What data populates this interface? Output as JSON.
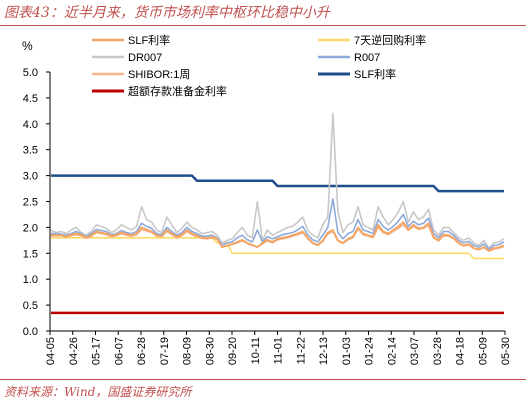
{
  "title": "图表43：近半月来，货币市场利率中枢环比稳中小升",
  "source": "资料来源：Wind，国盛证券研究所",
  "chart_data": {
    "type": "line",
    "ylabel": "%",
    "ylim": [
      0,
      5
    ],
    "yticks": [
      "0.0",
      "0.5",
      "1.0",
      "1.5",
      "2.0",
      "2.5",
      "3.0",
      "3.5",
      "4.0",
      "4.5",
      "5.0"
    ],
    "x_ticks": [
      "04-05",
      "04-26",
      "05-17",
      "06-07",
      "06-28",
      "07-19",
      "08-09",
      "08-30",
      "09-20",
      "10-11",
      "11-01",
      "11-22",
      "12-13",
      "01-03",
      "01-24",
      "02-14",
      "03-07",
      "03-28",
      "04-18",
      "05-09",
      "05-30"
    ],
    "legend_placement": "top",
    "series": [
      {
        "name": "SLF利率",
        "color": "#f4a460",
        "values": [
          1.85,
          1.85,
          1.85,
          1.82,
          1.86,
          1.88,
          1.86,
          1.8,
          1.85,
          1.92,
          1.9,
          1.88,
          1.84,
          1.86,
          1.9,
          1.87,
          1.85,
          1.88,
          2.0,
          1.96,
          1.92,
          1.85,
          1.83,
          1.95,
          1.88,
          1.82,
          1.86,
          1.95,
          1.88,
          1.84,
          1.8,
          1.79,
          1.82,
          1.78,
          1.62,
          1.65,
          1.68,
          1.72,
          1.76,
          1.7,
          1.66,
          1.62,
          1.7,
          1.76,
          1.72,
          1.78,
          1.8,
          1.82,
          1.85,
          1.88,
          1.92,
          1.8,
          1.7,
          1.66,
          1.75,
          1.9,
          1.95,
          1.75,
          1.7,
          1.78,
          1.82,
          2.0,
          1.88,
          1.85,
          1.82,
          2.05,
          1.92,
          1.88,
          1.95,
          2.02,
          2.1,
          1.96,
          2.05,
          1.98,
          2.0,
          2.08,
          1.82,
          1.75,
          1.86,
          1.85,
          1.8,
          1.7,
          1.65,
          1.68,
          1.6,
          1.58,
          1.62,
          1.55,
          1.6,
          1.62,
          1.65
        ]
      },
      {
        "name": "7天逆回购利率",
        "color": "#ffd966",
        "values": [
          1.8,
          1.8,
          1.8,
          1.8,
          1.8,
          1.8,
          1.8,
          1.8,
          1.8,
          1.8,
          1.8,
          1.8,
          1.8,
          1.8,
          1.8,
          1.8,
          1.8,
          1.8,
          1.8,
          1.8,
          1.8,
          1.8,
          1.8,
          1.8,
          1.8,
          1.8,
          1.8,
          1.8,
          1.8,
          1.8,
          1.8,
          1.8,
          1.8,
          1.7,
          1.7,
          1.7,
          1.5,
          1.5,
          1.5,
          1.5,
          1.5,
          1.5,
          1.5,
          1.5,
          1.5,
          1.5,
          1.5,
          1.5,
          1.5,
          1.5,
          1.5,
          1.5,
          1.5,
          1.5,
          1.5,
          1.5,
          1.5,
          1.5,
          1.5,
          1.5,
          1.5,
          1.5,
          1.5,
          1.5,
          1.5,
          1.5,
          1.5,
          1.5,
          1.5,
          1.5,
          1.5,
          1.5,
          1.5,
          1.5,
          1.5,
          1.5,
          1.5,
          1.5,
          1.5,
          1.5,
          1.5,
          1.5,
          1.5,
          1.5,
          1.4,
          1.4,
          1.4,
          1.4,
          1.4,
          1.4,
          1.4
        ]
      },
      {
        "name": "DR007",
        "color": "#c8c8c8",
        "values": [
          1.95,
          1.9,
          1.92,
          1.88,
          1.95,
          2.0,
          1.9,
          1.85,
          1.92,
          2.05,
          2.02,
          1.98,
          1.9,
          1.95,
          2.05,
          2.0,
          1.95,
          2.02,
          2.4,
          2.15,
          2.1,
          1.95,
          1.9,
          2.2,
          2.05,
          1.9,
          1.98,
          2.1,
          2.0,
          1.95,
          1.88,
          1.9,
          1.92,
          1.85,
          1.7,
          1.75,
          1.78,
          1.9,
          2.0,
          1.85,
          1.8,
          2.5,
          1.75,
          1.95,
          1.85,
          1.9,
          1.95,
          2.0,
          2.02,
          2.1,
          2.2,
          1.95,
          1.85,
          1.8,
          2.05,
          2.2,
          4.2,
          2.3,
          1.9,
          2.05,
          2.1,
          2.4,
          2.05,
          2.0,
          1.95,
          2.4,
          2.2,
          2.05,
          2.15,
          2.3,
          2.5,
          2.1,
          2.3,
          2.15,
          2.2,
          2.35,
          1.95,
          1.85,
          2.0,
          2.0,
          1.9,
          1.8,
          1.75,
          1.8,
          1.7,
          1.65,
          1.75,
          1.6,
          1.7,
          1.72,
          1.78
        ]
      },
      {
        "name": "R007",
        "color": "#8eaadb",
        "values": [
          1.88,
          1.88,
          1.87,
          1.85,
          1.88,
          1.92,
          1.88,
          1.82,
          1.88,
          1.96,
          1.94,
          1.92,
          1.86,
          1.88,
          1.94,
          1.9,
          1.88,
          1.92,
          2.08,
          2.02,
          1.98,
          1.88,
          1.86,
          2.0,
          1.92,
          1.85,
          1.9,
          2.0,
          1.92,
          1.88,
          1.83,
          1.83,
          1.85,
          1.8,
          1.66,
          1.7,
          1.72,
          1.8,
          1.85,
          1.76,
          1.72,
          1.95,
          1.72,
          1.82,
          1.78,
          1.82,
          1.86,
          1.88,
          1.9,
          1.95,
          2.02,
          1.86,
          1.76,
          1.72,
          1.85,
          2.0,
          2.55,
          1.9,
          1.78,
          1.88,
          1.92,
          2.15,
          1.95,
          1.92,
          1.88,
          2.15,
          2.02,
          1.95,
          2.02,
          2.12,
          2.25,
          2.02,
          2.12,
          2.05,
          2.08,
          2.18,
          1.88,
          1.8,
          1.92,
          1.92,
          1.85,
          1.75,
          1.7,
          1.73,
          1.65,
          1.62,
          1.68,
          1.58,
          1.65,
          1.67,
          1.72
        ]
      },
      {
        "name": "SHIBOR:1周",
        "color": "#f6b389",
        "values": [
          1.83,
          1.84,
          1.84,
          1.81,
          1.84,
          1.86,
          1.84,
          1.79,
          1.83,
          1.9,
          1.88,
          1.86,
          1.82,
          1.84,
          1.88,
          1.85,
          1.83,
          1.86,
          1.96,
          1.93,
          1.9,
          1.83,
          1.82,
          1.92,
          1.86,
          1.8,
          1.84,
          1.92,
          1.86,
          1.82,
          1.79,
          1.78,
          1.8,
          1.77,
          1.62,
          1.64,
          1.67,
          1.7,
          1.74,
          1.69,
          1.65,
          1.62,
          1.68,
          1.74,
          1.7,
          1.76,
          1.78,
          1.8,
          1.83,
          1.86,
          1.9,
          1.78,
          1.69,
          1.65,
          1.73,
          1.87,
          1.92,
          1.74,
          1.69,
          1.76,
          1.8,
          1.97,
          1.86,
          1.83,
          1.8,
          2.0,
          1.9,
          1.86,
          1.92,
          1.98,
          2.05,
          1.94,
          2.02,
          1.96,
          1.98,
          2.04,
          1.8,
          1.74,
          1.84,
          1.83,
          1.78,
          1.69,
          1.64,
          1.66,
          1.59,
          1.57,
          1.61,
          1.54,
          1.58,
          1.6,
          1.63
        ]
      },
      {
        "name": "SLF利率",
        "color": "#1f4e8c",
        "values": [
          3.0,
          3.0,
          3.0,
          3.0,
          3.0,
          3.0,
          3.0,
          3.0,
          3.0,
          3.0,
          3.0,
          3.0,
          3.0,
          3.0,
          3.0,
          3.0,
          3.0,
          3.0,
          3.0,
          3.0,
          3.0,
          3.0,
          3.0,
          3.0,
          3.0,
          3.0,
          3.0,
          3.0,
          3.0,
          2.9,
          2.9,
          2.9,
          2.9,
          2.9,
          2.9,
          2.9,
          2.9,
          2.9,
          2.9,
          2.9,
          2.9,
          2.9,
          2.9,
          2.9,
          2.9,
          2.8,
          2.8,
          2.8,
          2.8,
          2.8,
          2.8,
          2.8,
          2.8,
          2.8,
          2.8,
          2.8,
          2.8,
          2.8,
          2.8,
          2.8,
          2.8,
          2.8,
          2.8,
          2.8,
          2.8,
          2.8,
          2.8,
          2.8,
          2.8,
          2.8,
          2.8,
          2.8,
          2.8,
          2.8,
          2.8,
          2.8,
          2.8,
          2.7,
          2.7,
          2.7,
          2.7,
          2.7,
          2.7,
          2.7,
          2.7,
          2.7,
          2.7,
          2.7,
          2.7,
          2.7,
          2.7
        ]
      },
      {
        "name": "超额存款准备金利率",
        "color": "#c00000",
        "values": [
          0.35,
          0.35,
          0.35,
          0.35,
          0.35,
          0.35,
          0.35,
          0.35,
          0.35,
          0.35,
          0.35,
          0.35,
          0.35,
          0.35,
          0.35,
          0.35,
          0.35,
          0.35,
          0.35,
          0.35,
          0.35,
          0.35,
          0.35,
          0.35,
          0.35,
          0.35,
          0.35,
          0.35,
          0.35,
          0.35,
          0.35,
          0.35,
          0.35,
          0.35,
          0.35,
          0.35,
          0.35,
          0.35,
          0.35,
          0.35,
          0.35,
          0.35,
          0.35,
          0.35,
          0.35,
          0.35,
          0.35,
          0.35,
          0.35,
          0.35,
          0.35,
          0.35,
          0.35,
          0.35,
          0.35,
          0.35,
          0.35,
          0.35,
          0.35,
          0.35,
          0.35,
          0.35,
          0.35,
          0.35,
          0.35,
          0.35,
          0.35,
          0.35,
          0.35,
          0.35,
          0.35,
          0.35,
          0.35,
          0.35,
          0.35,
          0.35,
          0.35,
          0.35,
          0.35,
          0.35,
          0.35,
          0.35,
          0.35,
          0.35,
          0.35,
          0.35,
          0.35,
          0.35,
          0.35,
          0.35,
          0.35
        ]
      }
    ]
  }
}
